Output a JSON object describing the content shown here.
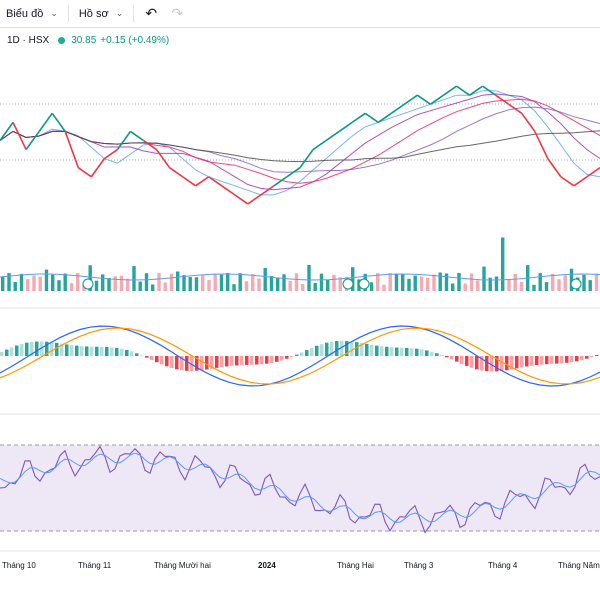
{
  "toolbar": {
    "chart_label": "Biểu đồ",
    "profile_label": "Hồ sơ",
    "undo_icon": "undo-icon",
    "redo_icon": "redo-icon"
  },
  "legend": {
    "symbol": "1D · HSX",
    "last": "30.85",
    "change": "+0.15 (+0.49%)"
  },
  "colors": {
    "up": "#089981",
    "down": "#f23645",
    "volume_up": "#26a69a",
    "volume_down": "#f7a9b1",
    "macd_line": "#2962ff",
    "signal_line": "#ff9800",
    "rsi_line": "#7e57c2",
    "rsi_band": "#ede7f6"
  },
  "x_axis": {
    "labels": [
      "Tháng 10",
      "Tháng 11",
      "Tháng Mười hai",
      "2024",
      "Tháng Hai",
      "Tháng 3",
      "Tháng 4",
      "Tháng Năm"
    ]
  },
  "chart_data": {
    "type": "line",
    "price_series": [
      34,
      36,
      33,
      35,
      37,
      35,
      31,
      30,
      32,
      33,
      35,
      34,
      33,
      31,
      30,
      29,
      30,
      29,
      28,
      27,
      28,
      29,
      30,
      31,
      33,
      34,
      35,
      36,
      37,
      36,
      37,
      38,
      39,
      38,
      39,
      40,
      39,
      40,
      39,
      38,
      37,
      35,
      32,
      30,
      29,
      30,
      31
    ]
  }
}
